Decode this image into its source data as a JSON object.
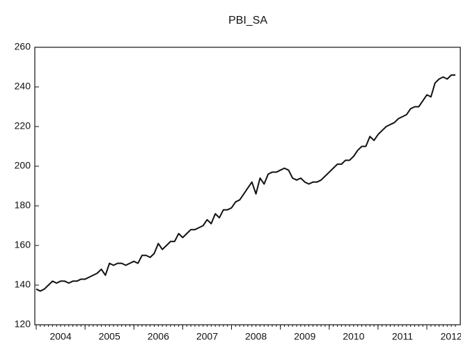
{
  "chart_data": {
    "type": "line",
    "title": "PBI_SA",
    "x": [
      2004,
      2004.083,
      2004.167,
      2004.25,
      2004.333,
      2004.417,
      2004.5,
      2004.583,
      2004.667,
      2004.75,
      2004.833,
      2004.917,
      2005,
      2005.083,
      2005.167,
      2005.25,
      2005.333,
      2005.417,
      2005.5,
      2005.583,
      2005.667,
      2005.75,
      2005.833,
      2005.917,
      2006,
      2006.083,
      2006.167,
      2006.25,
      2006.333,
      2006.417,
      2006.5,
      2006.583,
      2006.667,
      2006.75,
      2006.833,
      2006.917,
      2007,
      2007.083,
      2007.167,
      2007.25,
      2007.333,
      2007.417,
      2007.5,
      2007.583,
      2007.667,
      2007.75,
      2007.833,
      2007.917,
      2008,
      2008.083,
      2008.167,
      2008.25,
      2008.333,
      2008.417,
      2008.5,
      2008.583,
      2008.667,
      2008.75,
      2008.833,
      2008.917,
      2009,
      2009.083,
      2009.167,
      2009.25,
      2009.333,
      2009.417,
      2009.5,
      2009.583,
      2009.667,
      2009.75,
      2009.833,
      2009.917,
      2010,
      2010.083,
      2010.167,
      2010.25,
      2010.333,
      2010.417,
      2010.5,
      2010.583,
      2010.667,
      2010.75,
      2010.833,
      2010.917,
      2011,
      2011.083,
      2011.167,
      2011.25,
      2011.333,
      2011.417,
      2011.5,
      2011.583,
      2011.667,
      2011.75,
      2011.833,
      2011.917,
      2012,
      2012.083,
      2012.167,
      2012.25,
      2012.333,
      2012.417,
      2012.5,
      2012.583
    ],
    "series": [
      {
        "color": "#111111",
        "values": [
          138,
          137,
          138,
          140,
          142,
          141,
          142,
          142,
          141,
          142,
          142,
          143,
          143,
          144,
          145,
          146,
          148,
          145,
          151,
          150,
          151,
          151,
          150,
          151,
          152,
          151,
          155,
          155,
          154,
          156,
          161,
          158,
          160,
          162,
          162,
          166,
          164,
          166,
          168,
          168,
          169,
          170,
          173,
          171,
          176,
          174,
          178,
          178,
          179,
          182,
          183,
          186,
          189,
          192,
          186,
          194,
          191,
          196,
          197,
          197,
          198,
          199,
          198,
          194,
          193,
          194,
          192,
          191,
          192,
          192,
          193,
          195,
          197,
          199,
          201,
          201,
          203,
          203,
          205,
          208,
          210,
          210,
          215,
          213,
          216,
          218,
          220,
          221,
          222,
          224,
          225,
          226,
          229,
          230,
          230,
          233,
          236,
          235,
          242,
          244,
          245,
          244,
          246,
          246
        ]
      }
    ],
    "xlim": [
      2004,
      2012.67
    ],
    "xticks": [
      {
        "value": 2004.5,
        "label": "2004"
      },
      {
        "value": 2005.5,
        "label": "2005"
      },
      {
        "value": 2006.5,
        "label": "2006"
      },
      {
        "value": 2007.5,
        "label": "2007"
      },
      {
        "value": 2008.5,
        "label": "2008"
      },
      {
        "value": 2009.5,
        "label": "2009"
      },
      {
        "value": 2010.5,
        "label": "2010"
      },
      {
        "value": 2011.5,
        "label": "2011"
      },
      {
        "value": 2012.5,
        "label": "2012"
      }
    ],
    "ylim": [
      120,
      260
    ],
    "yticks": [
      120,
      140,
      160,
      180,
      200,
      220,
      240,
      260
    ],
    "grid": false
  }
}
